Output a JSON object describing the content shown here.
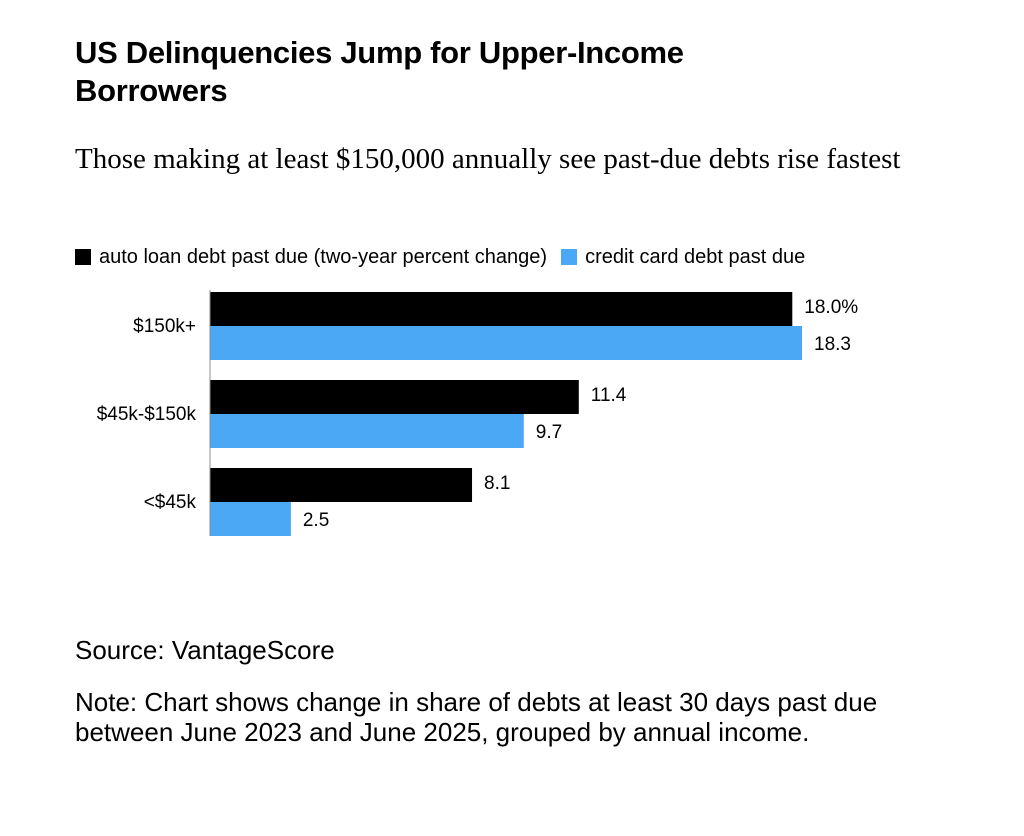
{
  "header": {
    "title": "US Delinquencies Jump for Upper-Income Borrowers",
    "subtitle": "Those making at least $150,000 annually see past-due debts rise fastest"
  },
  "footer": {
    "source": "Source: VantageScore",
    "note": "Note: Chart shows change in share of debts at least 30 days past due between June 2023 and June 2025, grouped by annual income."
  },
  "colors": {
    "auto": "#000000",
    "credit": "#4aa8f4"
  },
  "chart_data": {
    "type": "bar",
    "orientation": "horizontal",
    "categories": [
      "$150k+",
      "$45k-$150k",
      "<$45k"
    ],
    "series": [
      {
        "name": "auto loan debt past due (two-year percent change)",
        "values": [
          18.0,
          11.4,
          8.1
        ],
        "labels": [
          "18.0%",
          "11.4",
          "8.1"
        ]
      },
      {
        "name": "credit card debt past due",
        "values": [
          18.3,
          9.7,
          2.5
        ],
        "labels": [
          "18.3",
          "9.7",
          "2.5"
        ]
      }
    ],
    "xlim": [
      0,
      18.3
    ],
    "grid": false,
    "legend": "top-left"
  }
}
